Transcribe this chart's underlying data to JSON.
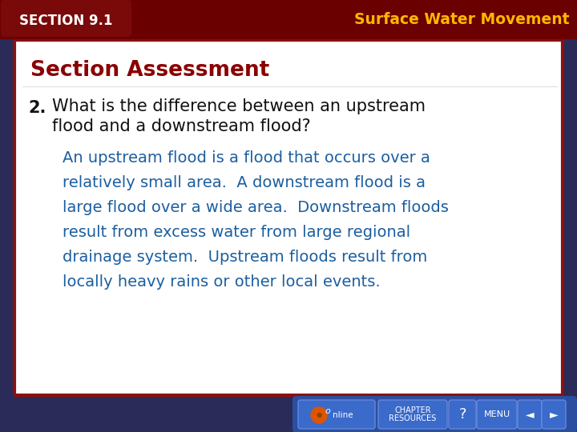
{
  "header_bg_color": "#6B0000",
  "section_label": "SECTION 9.1",
  "section_label_color": "#FFFFFF",
  "section_label_bg": "#7A0A0A",
  "title_text": "Surface Water Movement",
  "title_color": "#FFB800",
  "main_bg_color": "#FFFFFF",
  "main_border_color": "#8B1010",
  "outer_bg_color": "#2B2B5A",
  "section_assessment_text": "Section Assessment",
  "section_assessment_color": "#8B0000",
  "question_number": "2.",
  "question_line1": "What is the difference between an upstream",
  "question_line2": "flood and a downstream flood?",
  "question_color": "#111111",
  "answer_lines": [
    "An upstream flood is a flood that occurs over a",
    "relatively small area.  A downstream flood is a",
    "large flood over a wide area.  Downstream floods",
    "result from excess water from large regional",
    "drainage system.  Upstream floods result from",
    "locally heavy rains or other local events."
  ],
  "answer_color": "#1C5FA0",
  "footer_bg_color": "#2A4FA0",
  "btn_labels": [
    "CHAPTER\nRESOURCES",
    "?",
    "MENU",
    "◄",
    "►"
  ],
  "btn_color": "#3A6ACA",
  "btn_edge_color": "#6688DD"
}
